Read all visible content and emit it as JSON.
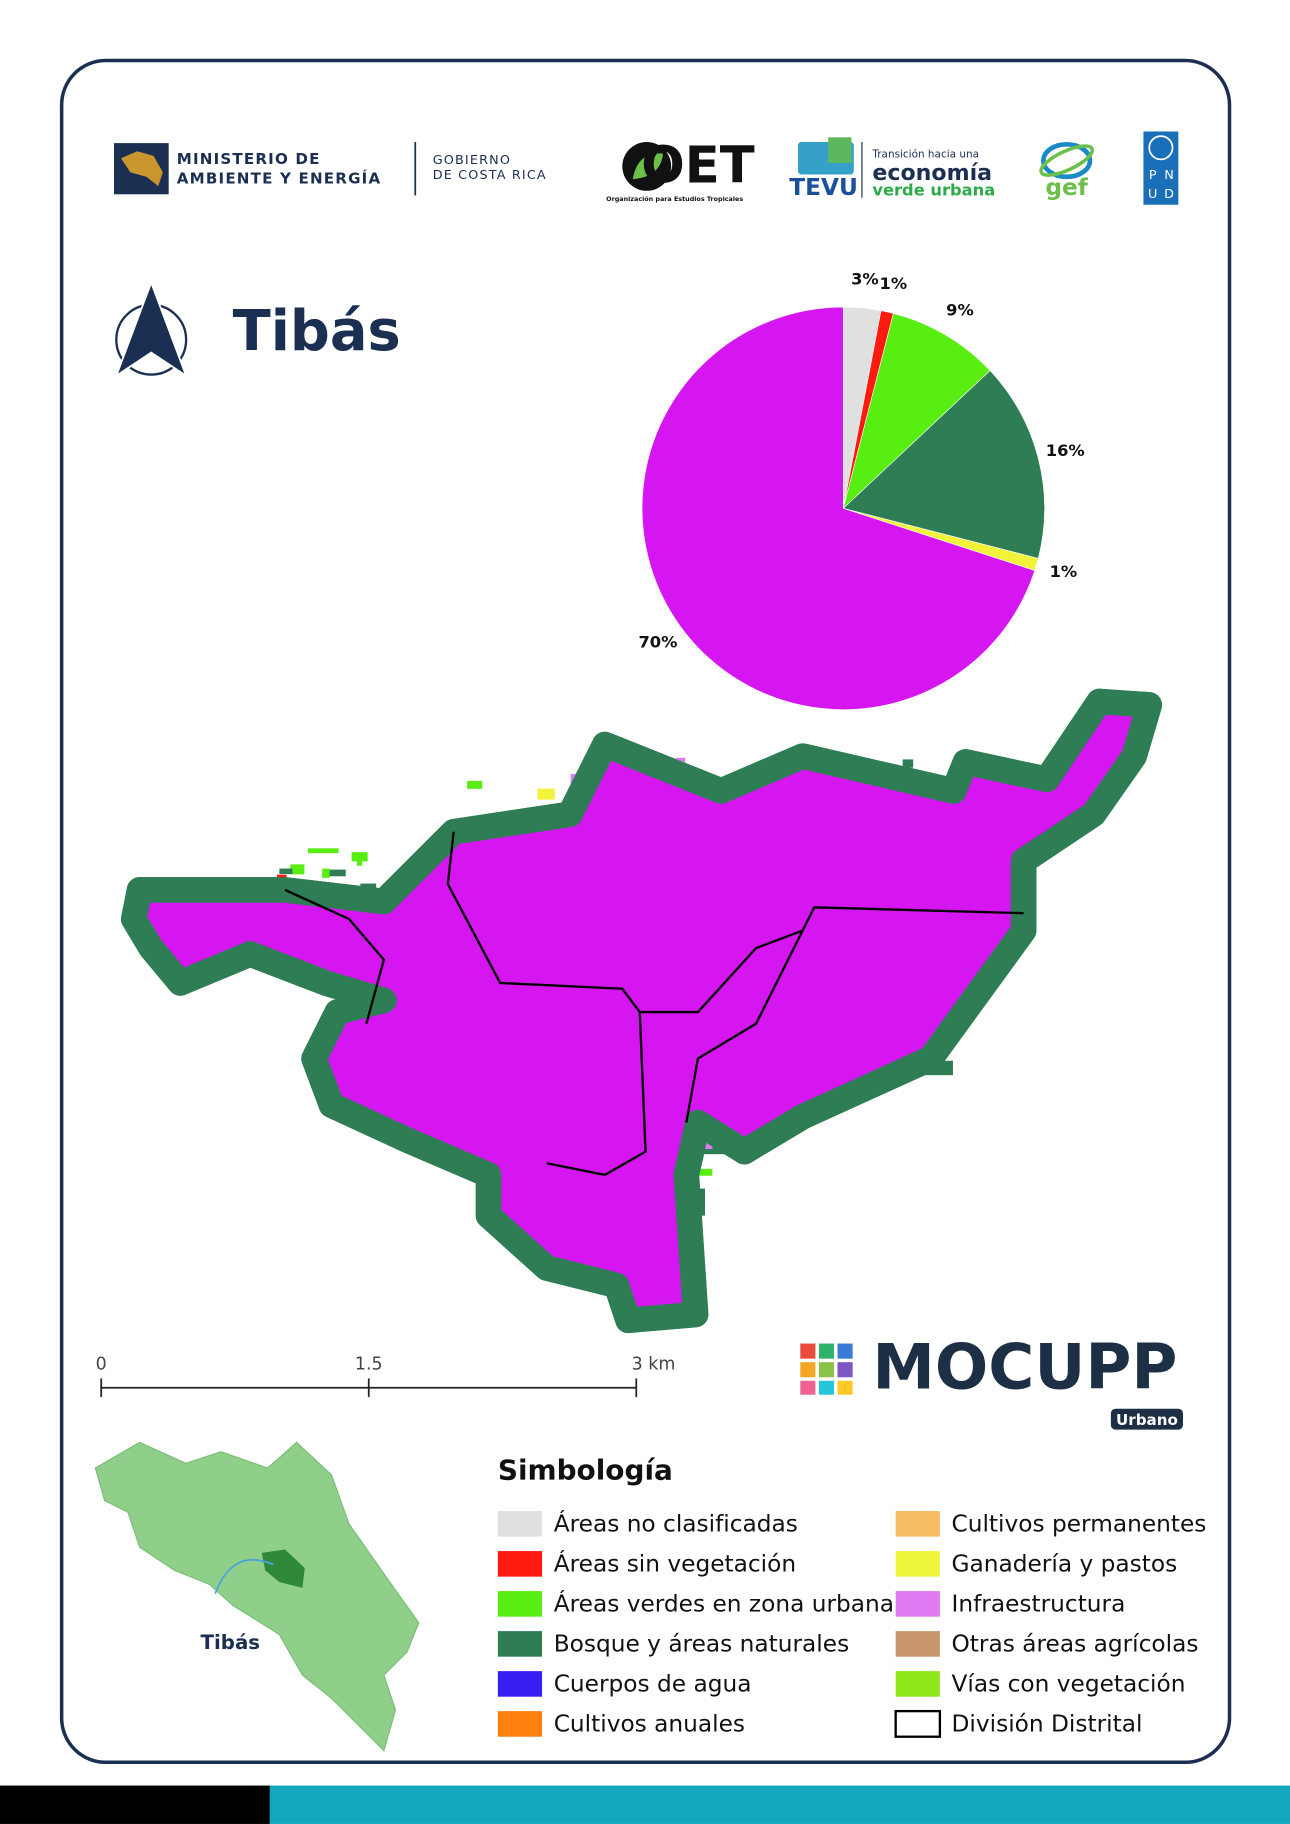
{
  "header": {
    "ministry": [
      "MINISTERIO DE",
      "AMBIENTE Y ENERGÍA"
    ],
    "government": [
      "GOBIERNO",
      "DE COSTA RICA"
    ],
    "oet": "OET",
    "oet_subtitle": "Organización para Estudios Tropicales",
    "tevu": "TEVU",
    "tevu_tagline": [
      "Transición hacia una",
      "economía",
      "verde urbana"
    ],
    "gef": "gef",
    "pnud": [
      "P",
      "N",
      "U",
      "D"
    ]
  },
  "title": "Tibás",
  "chart_data": {
    "type": "pie",
    "values": [
      3,
      1,
      9,
      16,
      1,
      70
    ],
    "value_labels": [
      "3%",
      "1%",
      "9%",
      "16%",
      "1%",
      "70%"
    ],
    "colors": [
      "#e0e0e0",
      "#ff1a0f",
      "#58ee12",
      "#2e7d55",
      "#f2f23a",
      "#d516f0"
    ]
  },
  "scale_bar": {
    "labels": [
      "0",
      "1.5",
      "3 km"
    ]
  },
  "brand": {
    "name": "MOCUPP",
    "badge": "Urbano"
  },
  "inset": {
    "label": "Tibás"
  },
  "legend": {
    "title": "Simbología",
    "items": [
      {
        "label": "Áreas no clasificadas",
        "color": "#e0e0e0"
      },
      {
        "label": "Áreas sin vegetación",
        "color": "#ff1a0f"
      },
      {
        "label": "Áreas verdes en zona urbana",
        "color": "#58ee12"
      },
      {
        "label": "Bosque y áreas naturales",
        "color": "#2e7d55"
      },
      {
        "label": "Cuerpos de agua",
        "color": "#3a1ff5"
      },
      {
        "label": "Cultivos anuales",
        "color": "#ff7f0f"
      },
      {
        "label": "Cultivos permanentes",
        "color": "#f7bb62"
      },
      {
        "label": "Ganadería y pastos",
        "color": "#eef53a"
      },
      {
        "label": "Infraestructura",
        "color": "#e07af0"
      },
      {
        "label": "Otras áreas agrícolas",
        "color": "#c8966a"
      },
      {
        "label": "Vías con vegetación",
        "color": "#8ee81c"
      },
      {
        "label": "División Distrital",
        "color": "#ffffff",
        "border": "#000000"
      }
    ]
  }
}
